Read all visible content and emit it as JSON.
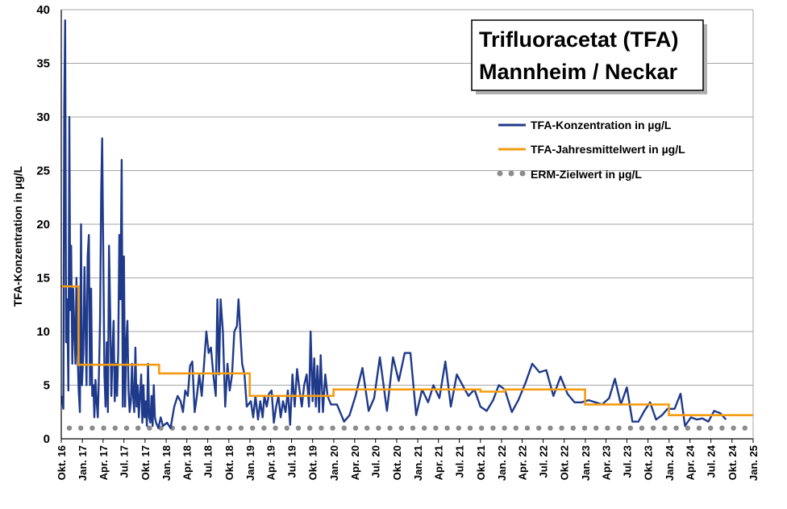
{
  "chart_data": {
    "type": "line",
    "title_lines": [
      "Trifluoracetat (TFA)",
      "Mannheim / Neckar"
    ],
    "ylabel": "TFA-Konzentration in µg/L",
    "xlabel": "",
    "ylim": [
      0,
      40
    ],
    "yticks": [
      0,
      5,
      10,
      15,
      20,
      25,
      30,
      35,
      40
    ],
    "xlim": [
      "2016-10-01",
      "2025-01-01"
    ],
    "xtick_labels": [
      "Okt. 16",
      "Jan. 17",
      "Apr. 17",
      "Jul. 17",
      "Okt. 17",
      "Jan. 18",
      "Apr. 18",
      "Jul. 18",
      "Okt. 18",
      "Jan. 19",
      "Apr. 19",
      "Jul. 19",
      "Okt. 19",
      "Jan. 20",
      "Apr. 20",
      "Jul. 20",
      "Okt. 20",
      "Jan. 21",
      "Apr. 21",
      "Jul. 21",
      "Okt. 21",
      "Jan. 22",
      "Apr. 22",
      "Jul. 22",
      "Okt. 22",
      "Jan. 23",
      "Apr. 23",
      "Jul. 23",
      "Okt. 23",
      "Jan. 24",
      "Apr. 24",
      "Jul. 24",
      "Okt. 24",
      "Jan. 25"
    ],
    "grid": "horizontal",
    "legend_position": "top-right",
    "colors": {
      "concentration": "#1f3a8a",
      "annual_mean": "#f39c12",
      "target": "#8c8c8c",
      "grid": "#a6a6a6"
    },
    "series": [
      {
        "name": "TFA-Konzentration in µg/L",
        "style": "line",
        "points": [
          [
            "2016-10-03",
            4
          ],
          [
            "2016-10-10",
            2.8
          ],
          [
            "2016-10-14",
            31
          ],
          [
            "2016-10-18",
            39
          ],
          [
            "2016-10-22",
            9
          ],
          [
            "2016-10-27",
            13
          ],
          [
            "2016-11-01",
            4.5
          ],
          [
            "2016-11-05",
            30
          ],
          [
            "2016-11-09",
            12
          ],
          [
            "2016-11-13",
            18
          ],
          [
            "2016-11-18",
            7
          ],
          [
            "2016-11-22",
            14
          ],
          [
            "2016-11-27",
            10
          ],
          [
            "2016-12-02",
            7
          ],
          [
            "2016-12-06",
            15
          ],
          [
            "2016-12-11",
            8
          ],
          [
            "2016-12-16",
            4.5
          ],
          [
            "2016-12-21",
            2.5
          ],
          [
            "2016-12-26",
            20
          ],
          [
            "2016-12-30",
            5
          ],
          [
            "2017-01-05",
            8
          ],
          [
            "2017-01-10",
            16
          ],
          [
            "2017-01-15",
            10
          ],
          [
            "2017-01-19",
            5
          ],
          [
            "2017-01-24",
            17
          ],
          [
            "2017-01-29",
            19
          ],
          [
            "2017-02-03",
            5
          ],
          [
            "2017-02-08",
            14
          ],
          [
            "2017-02-13",
            4
          ],
          [
            "2017-02-18",
            5
          ],
          [
            "2017-02-22",
            2
          ],
          [
            "2017-02-27",
            5.5
          ],
          [
            "2017-03-04",
            3.5
          ],
          [
            "2017-03-09",
            2
          ],
          [
            "2017-03-14",
            6
          ],
          [
            "2017-03-19",
            11
          ],
          [
            "2017-03-24",
            23
          ],
          [
            "2017-03-28",
            28
          ],
          [
            "2017-04-02",
            17
          ],
          [
            "2017-04-07",
            6
          ],
          [
            "2017-04-12",
            3
          ],
          [
            "2017-04-17",
            9
          ],
          [
            "2017-04-22",
            2.5
          ],
          [
            "2017-04-27",
            18
          ],
          [
            "2017-05-02",
            12
          ],
          [
            "2017-05-07",
            4
          ],
          [
            "2017-05-12",
            8
          ],
          [
            "2017-05-17",
            11
          ],
          [
            "2017-05-22",
            3.5
          ],
          [
            "2017-05-27",
            7
          ],
          [
            "2017-06-01",
            4
          ],
          [
            "2017-06-06",
            8
          ],
          [
            "2017-06-11",
            19
          ],
          [
            "2017-06-16",
            13
          ],
          [
            "2017-06-21",
            26
          ],
          [
            "2017-06-26",
            3
          ],
          [
            "2017-07-01",
            17
          ],
          [
            "2017-07-06",
            3
          ],
          [
            "2017-07-11",
            9
          ],
          [
            "2017-07-16",
            11
          ],
          [
            "2017-07-21",
            4.5
          ],
          [
            "2017-07-26",
            2.5
          ],
          [
            "2017-07-31",
            3.5
          ],
          [
            "2017-08-05",
            7
          ],
          [
            "2017-08-10",
            4
          ],
          [
            "2017-08-15",
            2.5
          ],
          [
            "2017-08-20",
            8.5
          ],
          [
            "2017-08-25",
            3
          ],
          [
            "2017-08-30",
            5
          ],
          [
            "2017-09-04",
            2
          ],
          [
            "2017-09-09",
            4
          ],
          [
            "2017-09-14",
            6
          ],
          [
            "2017-09-19",
            1.5
          ],
          [
            "2017-09-24",
            5
          ],
          [
            "2017-09-29",
            2
          ],
          [
            "2017-10-04",
            3.5
          ],
          [
            "2017-10-09",
            1.2
          ],
          [
            "2017-10-14",
            7
          ],
          [
            "2017-10-19",
            2
          ],
          [
            "2017-10-24",
            1.5
          ],
          [
            "2017-10-29",
            4
          ],
          [
            "2017-11-03",
            1.2
          ],
          [
            "2017-11-08",
            5
          ],
          [
            "2017-11-13",
            2
          ],
          [
            "2017-11-18",
            1.5
          ],
          [
            "2017-11-28",
            1
          ],
          [
            "2017-12-08",
            2
          ],
          [
            "2017-12-18",
            1.2
          ],
          [
            "2018-01-05",
            1.5
          ],
          [
            "2018-01-20",
            1
          ],
          [
            "2018-02-05",
            3
          ],
          [
            "2018-02-20",
            4
          ],
          [
            "2018-03-05",
            3.5
          ],
          [
            "2018-03-15",
            2.5
          ],
          [
            "2018-03-25",
            4.5
          ],
          [
            "2018-04-05",
            4
          ],
          [
            "2018-04-15",
            6.8
          ],
          [
            "2018-04-25",
            7.2
          ],
          [
            "2018-05-05",
            2.5
          ],
          [
            "2018-05-15",
            4
          ],
          [
            "2018-05-25",
            6
          ],
          [
            "2018-06-05",
            4
          ],
          [
            "2018-06-15",
            7
          ],
          [
            "2018-06-25",
            10
          ],
          [
            "2018-07-05",
            8
          ],
          [
            "2018-07-15",
            8.5
          ],
          [
            "2018-07-25",
            6
          ],
          [
            "2018-08-05",
            4
          ],
          [
            "2018-08-12",
            13
          ],
          [
            "2018-08-19",
            6
          ],
          [
            "2018-08-26",
            13
          ],
          [
            "2018-09-05",
            10
          ],
          [
            "2018-09-15",
            3
          ],
          [
            "2018-09-25",
            7
          ],
          [
            "2018-10-05",
            4.5
          ],
          [
            "2018-10-15",
            6
          ],
          [
            "2018-10-25",
            10
          ],
          [
            "2018-11-05",
            10.5
          ],
          [
            "2018-11-12",
            13
          ],
          [
            "2018-11-20",
            10
          ],
          [
            "2018-11-28",
            7
          ],
          [
            "2018-12-08",
            6
          ],
          [
            "2018-12-18",
            3
          ],
          [
            "2019-01-05",
            3.5
          ],
          [
            "2019-01-15",
            2
          ],
          [
            "2019-01-25",
            4
          ],
          [
            "2019-02-05",
            1.8
          ],
          [
            "2019-02-15",
            3.5
          ],
          [
            "2019-02-25",
            2
          ],
          [
            "2019-03-05",
            4
          ],
          [
            "2019-03-15",
            3
          ],
          [
            "2019-03-25",
            4.2
          ],
          [
            "2019-04-05",
            4.5
          ],
          [
            "2019-04-15",
            1.5
          ],
          [
            "2019-04-25",
            3
          ],
          [
            "2019-05-05",
            4
          ],
          [
            "2019-05-15",
            2
          ],
          [
            "2019-05-25",
            3.5
          ],
          [
            "2019-06-05",
            2.5
          ],
          [
            "2019-06-15",
            4.5
          ],
          [
            "2019-06-25",
            1.3
          ],
          [
            "2019-07-05",
            6
          ],
          [
            "2019-07-15",
            3
          ],
          [
            "2019-07-25",
            6.5
          ],
          [
            "2019-08-05",
            4.5
          ],
          [
            "2019-08-15",
            3
          ],
          [
            "2019-08-25",
            5
          ],
          [
            "2019-09-05",
            6
          ],
          [
            "2019-09-15",
            3
          ],
          [
            "2019-09-22",
            10
          ],
          [
            "2019-10-01",
            3.5
          ],
          [
            "2019-10-08",
            7.5
          ],
          [
            "2019-10-15",
            3
          ],
          [
            "2019-10-22",
            6.8
          ],
          [
            "2019-10-29",
            2.5
          ],
          [
            "2019-11-05",
            7.8
          ],
          [
            "2019-11-15",
            2.5
          ],
          [
            "2019-11-25",
            6
          ],
          [
            "2019-12-05",
            4
          ],
          [
            "2019-12-20",
            3.2
          ],
          [
            "2020-01-15",
            3.2
          ],
          [
            "2020-02-15",
            1.6
          ],
          [
            "2020-03-10",
            2.2
          ],
          [
            "2020-04-05",
            4
          ],
          [
            "2020-05-05",
            6.6
          ],
          [
            "2020-06-01",
            2.6
          ],
          [
            "2020-06-25",
            3.8
          ],
          [
            "2020-07-20",
            7.6
          ],
          [
            "2020-08-20",
            2.6
          ],
          [
            "2020-09-15",
            7.6
          ],
          [
            "2020-10-10",
            5.4
          ],
          [
            "2020-11-05",
            8
          ],
          [
            "2020-11-30",
            8
          ],
          [
            "2020-12-25",
            2.2
          ],
          [
            "2021-01-20",
            4.6
          ],
          [
            "2021-02-15",
            3.4
          ],
          [
            "2021-03-10",
            5
          ],
          [
            "2021-04-05",
            3.8
          ],
          [
            "2021-05-01",
            7.2
          ],
          [
            "2021-05-25",
            3
          ],
          [
            "2021-06-20",
            6
          ],
          [
            "2021-07-15",
            5
          ],
          [
            "2021-08-10",
            4
          ],
          [
            "2021-09-05",
            4.6
          ],
          [
            "2021-10-01",
            3
          ],
          [
            "2021-10-28",
            2.6
          ],
          [
            "2021-11-25",
            3.6
          ],
          [
            "2021-12-20",
            5
          ],
          [
            "2022-01-15",
            4.6
          ],
          [
            "2022-02-15",
            2.5
          ],
          [
            "2022-03-15",
            3.6
          ],
          [
            "2022-04-15",
            5.2
          ],
          [
            "2022-05-15",
            7
          ],
          [
            "2022-06-15",
            6.2
          ],
          [
            "2022-07-15",
            6.4
          ],
          [
            "2022-08-15",
            4
          ],
          [
            "2022-09-15",
            5.8
          ],
          [
            "2022-10-15",
            4.2
          ],
          [
            "2022-11-15",
            3.4
          ],
          [
            "2022-12-15",
            3.4
          ],
          [
            "2023-01-15",
            3.6
          ],
          [
            "2023-02-15",
            3.4
          ],
          [
            "2023-03-15",
            3.2
          ],
          [
            "2023-04-15",
            3.8
          ],
          [
            "2023-05-10",
            5.6
          ],
          [
            "2023-06-05",
            3.2
          ],
          [
            "2023-07-01",
            4.8
          ],
          [
            "2023-07-25",
            1.6
          ],
          [
            "2023-08-20",
            1.6
          ],
          [
            "2023-09-15",
            2.6
          ],
          [
            "2023-10-10",
            3.4
          ],
          [
            "2023-11-05",
            1.8
          ],
          [
            "2023-12-01",
            2.2
          ],
          [
            "2023-12-25",
            2.8
          ],
          [
            "2024-01-25",
            2.8
          ],
          [
            "2024-02-20",
            4.2
          ],
          [
            "2024-03-10",
            1.2
          ],
          [
            "2024-04-05",
            2
          ],
          [
            "2024-05-01",
            1.8
          ],
          [
            "2024-05-25",
            1.9
          ],
          [
            "2024-06-20",
            1.6
          ],
          [
            "2024-07-15",
            2.6
          ],
          [
            "2024-08-10",
            2.4
          ],
          [
            "2024-09-05",
            1.8
          ]
        ]
      },
      {
        "name": "TFA-Jahresmittelwert in µg/L",
        "style": "step",
        "segments": [
          {
            "start": "2016-10-01",
            "end": "2016-12-15",
            "value": 14.2
          },
          {
            "start": "2016-12-15",
            "end": "2017-12-01",
            "value": 6.9
          },
          {
            "start": "2017-12-01",
            "end": "2018-12-31",
            "value": 6.1
          },
          {
            "start": "2018-12-31",
            "end": "2019-12-31",
            "value": 4.0
          },
          {
            "start": "2019-12-31",
            "end": "2021-10-01",
            "value": 4.6
          },
          {
            "start": "2021-10-01",
            "end": "2022-01-15",
            "value": 4.4
          },
          {
            "start": "2022-01-15",
            "end": "2022-12-31",
            "value": 4.6
          },
          {
            "start": "2022-12-31",
            "end": "2023-12-31",
            "value": 3.2
          },
          {
            "start": "2023-12-31",
            "end": "2024-12-31",
            "value": 2.2
          }
        ]
      },
      {
        "name": "ERM-Zielwert in µg/L",
        "style": "dotted",
        "value": 1.0
      }
    ]
  }
}
